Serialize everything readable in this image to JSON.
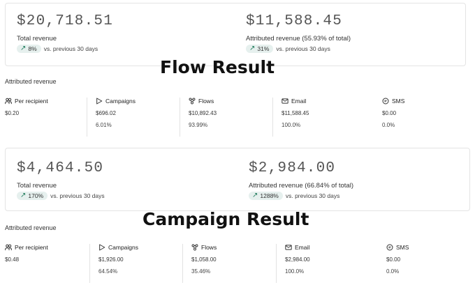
{
  "flow": {
    "overlay_title": "Flow Result",
    "total": {
      "value": "$20,718.51",
      "label": "Total revenue",
      "delta": "8%",
      "comparison": "vs. previous 30 days"
    },
    "attributed": {
      "value": "$11,588.45",
      "label": "Attributed revenue (55.93% of total)",
      "delta": "31%",
      "comparison": "vs. previous 30 days"
    },
    "section_label": "Attributed revenue",
    "columns": [
      {
        "icon": "people-icon",
        "title": "Per recipient",
        "value": "$0.20",
        "pct": ""
      },
      {
        "icon": "play-triangle-icon",
        "title": "Campaigns",
        "value": "$696.02",
        "pct": "6.01%"
      },
      {
        "icon": "flows-icon",
        "title": "Flows",
        "value": "$10,892.43",
        "pct": "93.99%"
      },
      {
        "icon": "envelope-icon",
        "title": "Email",
        "value": "$11,588.45",
        "pct": "100.0%"
      },
      {
        "icon": "sms-icon",
        "title": "SMS",
        "value": "$0.00",
        "pct": "0.0%"
      }
    ]
  },
  "campaign": {
    "overlay_title": "Campaign Result",
    "total": {
      "value": "$4,464.50",
      "label": "Total revenue",
      "delta": "170%",
      "comparison": "vs. previous 30 days"
    },
    "attributed": {
      "value": "$2,984.00",
      "label": "Attributed revenue (66.84% of total)",
      "delta": "1288%",
      "comparison": "vs. previous 30 days"
    },
    "section_label": "Attributed revenue",
    "columns": [
      {
        "icon": "people-icon",
        "title": "Per recipient",
        "value": "$0.48",
        "pct": ""
      },
      {
        "icon": "play-triangle-icon",
        "title": "Campaigns",
        "value": "$1,926.00",
        "pct": "64.54%"
      },
      {
        "icon": "flows-icon",
        "title": "Flows",
        "value": "$1,058.00",
        "pct": "35.46%"
      },
      {
        "icon": "envelope-icon",
        "title": "Email",
        "value": "$2,984.00",
        "pct": "100.0%"
      },
      {
        "icon": "sms-icon",
        "title": "SMS",
        "value": "$0.00",
        "pct": "0.0%"
      }
    ]
  },
  "colors": {
    "accent": "#1e7a5a",
    "pill_bg": "#e6f0ee",
    "border": "#e4e4e4"
  }
}
